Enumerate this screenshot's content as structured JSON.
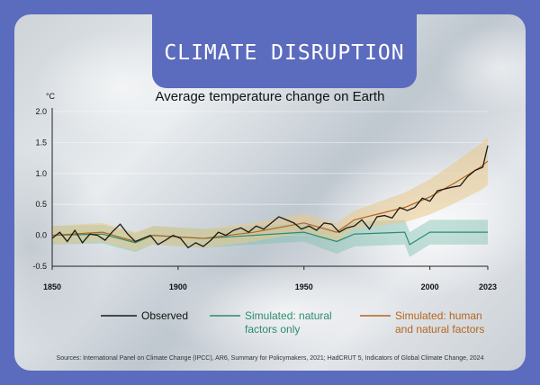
{
  "banner": {
    "title": "CLIMATE DISRUPTION"
  },
  "chart_data": {
    "type": "line",
    "title": "Average temperature change on Earth",
    "ylabel": "°C",
    "xlabel": "",
    "xlim": [
      1850,
      2023
    ],
    "ylim": [
      -0.5,
      2.0
    ],
    "x_ticks": [
      1850,
      1900,
      1950,
      2000,
      2023
    ],
    "y_ticks": [
      -0.5,
      0.0,
      0.5,
      1.0,
      1.5,
      2.0
    ],
    "y_tick_labels": [
      "-0.5",
      "0.0",
      "0.5",
      "1.0",
      "1.5",
      "2.0"
    ],
    "colors": {
      "observed": "#1a1a1a",
      "natural": "#2e8b6e",
      "human": "#b5651d",
      "human_band": "#e9c98a",
      "natural_band": "#7fc2b0"
    },
    "series": [
      {
        "name": "Observed",
        "x": [
          1850,
          1853,
          1856,
          1859,
          1862,
          1865,
          1868,
          1871,
          1874,
          1877,
          1880,
          1883,
          1886,
          1889,
          1892,
          1895,
          1898,
          1901,
          1904,
          1907,
          1910,
          1913,
          1916,
          1919,
          1922,
          1925,
          1928,
          1931,
          1934,
          1937,
          1940,
          1943,
          1946,
          1949,
          1952,
          1955,
          1958,
          1961,
          1964,
          1967,
          1970,
          1973,
          1976,
          1979,
          1982,
          1985,
          1988,
          1991,
          1994,
          1997,
          2000,
          2003,
          2006,
          2009,
          2012,
          2015,
          2018,
          2021,
          2023
        ],
        "values": [
          -0.05,
          0.05,
          -0.1,
          0.08,
          -0.12,
          0.02,
          0.0,
          -0.08,
          0.06,
          0.18,
          0.02,
          -0.1,
          -0.05,
          0.0,
          -0.15,
          -0.08,
          0.0,
          -0.05,
          -0.2,
          -0.12,
          -0.18,
          -0.08,
          0.05,
          0.0,
          0.08,
          0.12,
          0.05,
          0.15,
          0.1,
          0.2,
          0.3,
          0.25,
          0.2,
          0.1,
          0.15,
          0.08,
          0.2,
          0.18,
          0.05,
          0.12,
          0.15,
          0.25,
          0.1,
          0.3,
          0.32,
          0.28,
          0.45,
          0.4,
          0.45,
          0.6,
          0.55,
          0.72,
          0.75,
          0.78,
          0.8,
          0.95,
          1.05,
          1.1,
          1.45
        ]
      },
      {
        "name": "Simulated: natural factors only",
        "x": [
          1850,
          1870,
          1883,
          1890,
          1910,
          1930,
          1950,
          1963,
          1970,
          1990,
          1992,
          2000,
          2010,
          2020,
          2023
        ],
        "values": [
          0.0,
          0.02,
          -0.12,
          0.0,
          -0.05,
          0.0,
          0.05,
          -0.1,
          0.02,
          0.05,
          -0.15,
          0.05,
          0.05,
          0.05,
          0.05
        ]
      },
      {
        "name": "Simulated: human and natural factors",
        "x": [
          1850,
          1870,
          1883,
          1890,
          1910,
          1930,
          1950,
          1963,
          1970,
          1980,
          1990,
          2000,
          2010,
          2020,
          2023
        ],
        "values": [
          0.0,
          0.05,
          -0.1,
          0.0,
          -0.05,
          0.05,
          0.2,
          0.05,
          0.25,
          0.35,
          0.45,
          0.62,
          0.85,
          1.1,
          1.2
        ]
      }
    ],
    "legend": [
      "Observed",
      "Simulated: natural factors only",
      "Simulated: human and natural factors"
    ]
  },
  "legend": {
    "observed": "Observed",
    "natural_1": "Simulated: natural",
    "natural_2": "factors only",
    "human_1": "Simulated: human",
    "human_2": "and natural factors"
  },
  "source": "Sources: International Panel on Climate Change (IPCC), AR6, Summary for Policymakers, 2021; HadCRUT 5, Indicators of Global Climate Change, 2024"
}
